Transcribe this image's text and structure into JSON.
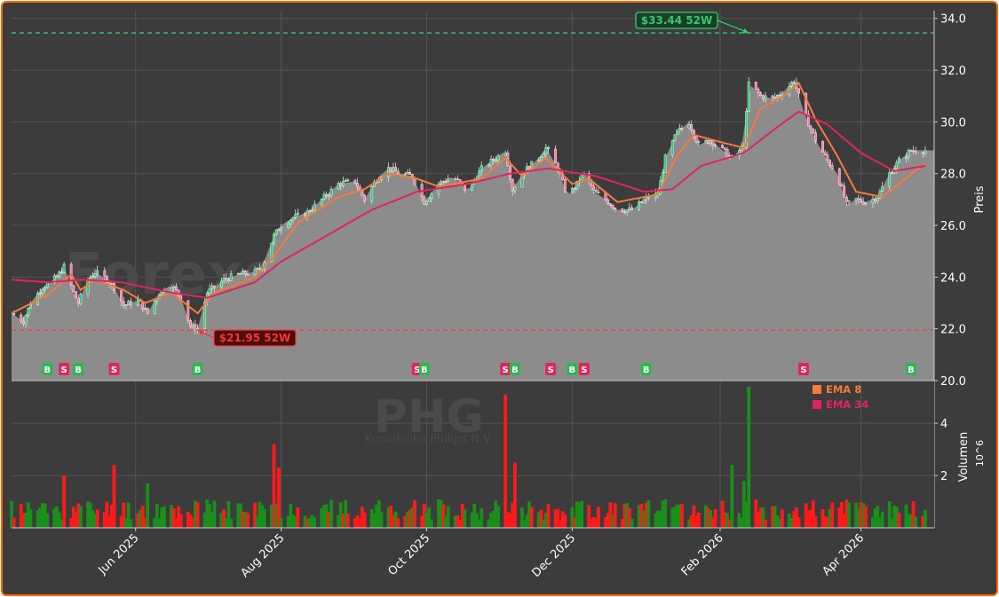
{
  "chart_data": [
    {
      "type": "candlestick",
      "panel": "price",
      "watermark": "Forexsignale.trade",
      "ylabel": "Preis",
      "ylim": [
        20.0,
        34.3
      ],
      "yticks": [
        20.0,
        22.0,
        24.0,
        26.0,
        28.0,
        30.0,
        32.0,
        34.0
      ],
      "ytick_labels": [
        "20.0",
        "22.0",
        "24.0",
        "26.0",
        "28.0",
        "30.0",
        "32.0",
        "34.0"
      ],
      "xlim": [
        "2025-04-10",
        "2026-04-28"
      ],
      "xticks": [
        "2025-06-01",
        "2025-08-01",
        "2025-10-01",
        "2025-12-01",
        "2026-02-01",
        "2026-04-01"
      ],
      "xtick_labels": [
        "Jun 2025",
        "Aug 2025",
        "Oct 2025",
        "Dec 2025",
        "Feb 2026",
        "Apr 2026"
      ],
      "grid": true,
      "close_points": [
        [
          "2025-04-10",
          22.6
        ],
        [
          "2025-04-15",
          22.3
        ],
        [
          "2025-04-18",
          23.0
        ],
        [
          "2025-04-23",
          23.6
        ],
        [
          "2025-04-29",
          24.0
        ],
        [
          "2025-05-02",
          24.4
        ],
        [
          "2025-05-06",
          23.4
        ],
        [
          "2025-05-08",
          23.0
        ],
        [
          "2025-05-12",
          23.9
        ],
        [
          "2025-05-15",
          24.2
        ],
        [
          "2025-05-20",
          23.9
        ],
        [
          "2025-05-23",
          23.6
        ],
        [
          "2025-05-27",
          22.9
        ],
        [
          "2025-06-02",
          23.1
        ],
        [
          "2025-06-06",
          22.6
        ],
        [
          "2025-06-11",
          23.4
        ],
        [
          "2025-06-16",
          23.7
        ],
        [
          "2025-06-20",
          23.2
        ],
        [
          "2025-06-24",
          22.1
        ],
        [
          "2025-06-27",
          22.0
        ],
        [
          "2025-07-01",
          23.4
        ],
        [
          "2025-07-08",
          23.9
        ],
        [
          "2025-07-14",
          24.1
        ],
        [
          "2025-07-21",
          24.2
        ],
        [
          "2025-07-24",
          24.4
        ],
        [
          "2025-07-29",
          25.6
        ],
        [
          "2025-08-01",
          26.0
        ],
        [
          "2025-08-06",
          26.3
        ],
        [
          "2025-08-12",
          26.5
        ],
        [
          "2025-08-18",
          27.0
        ],
        [
          "2025-08-25",
          27.6
        ],
        [
          "2025-09-01",
          27.7
        ],
        [
          "2025-09-05",
          27.0
        ],
        [
          "2025-09-10",
          27.8
        ],
        [
          "2025-09-15",
          28.2
        ],
        [
          "2025-09-20",
          28.0
        ],
        [
          "2025-09-25",
          27.9
        ],
        [
          "2025-09-30",
          26.9
        ],
        [
          "2025-10-06",
          27.6
        ],
        [
          "2025-10-12",
          27.9
        ],
        [
          "2025-10-18",
          27.3
        ],
        [
          "2025-10-24",
          28.2
        ],
        [
          "2025-10-30",
          28.6
        ],
        [
          "2025-11-03",
          28.9
        ],
        [
          "2025-11-06",
          27.4
        ],
        [
          "2025-11-11",
          28.1
        ],
        [
          "2025-11-17",
          28.6
        ],
        [
          "2025-11-20",
          29.0
        ],
        [
          "2025-11-25",
          28.2
        ],
        [
          "2025-11-29",
          27.1
        ],
        [
          "2025-12-03",
          27.6
        ],
        [
          "2025-12-06",
          28.1
        ],
        [
          "2025-12-10",
          27.3
        ],
        [
          "2025-12-15",
          27.0
        ],
        [
          "2025-12-20",
          26.6
        ],
        [
          "2025-12-26",
          26.6
        ],
        [
          "2026-01-02",
          27.1
        ],
        [
          "2026-01-06",
          27.2
        ],
        [
          "2026-01-09",
          28.6
        ],
        [
          "2026-01-14",
          29.6
        ],
        [
          "2026-01-19",
          30.0
        ],
        [
          "2026-01-23",
          29.1
        ],
        [
          "2026-01-28",
          29.3
        ],
        [
          "2026-02-02",
          28.9
        ],
        [
          "2026-02-06",
          28.6
        ],
        [
          "2026-02-11",
          29.1
        ],
        [
          "2026-02-13",
          31.5
        ],
        [
          "2026-02-18",
          31.0
        ],
        [
          "2026-02-23",
          30.9
        ],
        [
          "2026-02-28",
          31.2
        ],
        [
          "2026-03-04",
          31.6
        ],
        [
          "2026-03-08",
          30.4
        ],
        [
          "2026-03-13",
          29.3
        ],
        [
          "2026-03-18",
          28.5
        ],
        [
          "2026-03-22",
          28.0
        ],
        [
          "2026-03-26",
          26.8
        ],
        [
          "2026-03-30",
          27.0
        ],
        [
          "2026-04-03",
          26.9
        ],
        [
          "2026-04-08",
          27.1
        ],
        [
          "2026-04-13",
          28.0
        ],
        [
          "2026-04-17",
          28.5
        ],
        [
          "2026-04-22",
          28.9
        ],
        [
          "2026-04-28",
          28.9
        ]
      ],
      "indicators": [
        {
          "name": "EMA 8",
          "color": "#f47b3c",
          "points": [
            [
              "2025-04-10",
              22.6
            ],
            [
              "2025-04-25",
              23.3
            ],
            [
              "2025-05-05",
              24.1
            ],
            [
              "2025-05-09",
              23.5
            ],
            [
              "2025-05-15",
              23.9
            ],
            [
              "2025-05-27",
              23.5
            ],
            [
              "2025-06-05",
              23.0
            ],
            [
              "2025-06-16",
              23.4
            ],
            [
              "2025-06-27",
              22.6
            ],
            [
              "2025-07-04",
              23.4
            ],
            [
              "2025-07-21",
              24.0
            ],
            [
              "2025-07-29",
              24.8
            ],
            [
              "2025-08-08",
              26.1
            ],
            [
              "2025-08-25",
              27.1
            ],
            [
              "2025-09-05",
              27.4
            ],
            [
              "2025-09-15",
              28.0
            ],
            [
              "2025-09-27",
              27.8
            ],
            [
              "2025-10-06",
              27.5
            ],
            [
              "2025-10-24",
              27.8
            ],
            [
              "2025-11-03",
              28.6
            ],
            [
              "2025-11-10",
              27.9
            ],
            [
              "2025-11-20",
              28.6
            ],
            [
              "2025-12-01",
              27.6
            ],
            [
              "2025-12-08",
              27.8
            ],
            [
              "2025-12-20",
              26.9
            ],
            [
              "2026-01-06",
              27.2
            ],
            [
              "2026-01-14",
              28.7
            ],
            [
              "2026-01-21",
              29.5
            ],
            [
              "2026-02-02",
              29.2
            ],
            [
              "2026-02-11",
              29.0
            ],
            [
              "2026-02-18",
              30.5
            ],
            [
              "2026-03-01",
              31.1
            ],
            [
              "2026-03-06",
              31.5
            ],
            [
              "2026-03-13",
              30.1
            ],
            [
              "2026-03-22",
              28.7
            ],
            [
              "2026-03-30",
              27.3
            ],
            [
              "2026-04-10",
              27.1
            ],
            [
              "2026-04-28",
              28.4
            ]
          ]
        },
        {
          "name": "EMA 34",
          "color": "#e0245e",
          "points": [
            [
              "2025-04-10",
              23.9
            ],
            [
              "2025-04-25",
              23.8
            ],
            [
              "2025-05-10",
              23.9
            ],
            [
              "2025-05-26",
              23.8
            ],
            [
              "2025-06-16",
              23.4
            ],
            [
              "2025-07-01",
              23.2
            ],
            [
              "2025-07-21",
              23.8
            ],
            [
              "2025-08-01",
              24.6
            ],
            [
              "2025-08-20",
              25.6
            ],
            [
              "2025-09-08",
              26.6
            ],
            [
              "2025-09-27",
              27.3
            ],
            [
              "2025-10-18",
              27.6
            ],
            [
              "2025-11-05",
              28.0
            ],
            [
              "2025-11-21",
              28.2
            ],
            [
              "2025-12-11",
              27.9
            ],
            [
              "2025-12-31",
              27.3
            ],
            [
              "2026-01-12",
              27.4
            ],
            [
              "2026-01-24",
              28.3
            ],
            [
              "2026-02-11",
              28.8
            ],
            [
              "2026-02-25",
              29.8
            ],
            [
              "2026-03-06",
              30.4
            ],
            [
              "2026-03-18",
              29.9
            ],
            [
              "2026-04-01",
              28.8
            ],
            [
              "2026-04-15",
              28.1
            ],
            [
              "2026-04-28",
              28.3
            ]
          ]
        }
      ],
      "reference_lines": [
        {
          "label": "$33.44 52W",
          "value": 33.44,
          "date": "2026-02-13",
          "color": "#2ecc71"
        },
        {
          "label": "$21.95 52W",
          "value": 21.95,
          "date": "2025-06-27",
          "color": "#ff3333"
        }
      ],
      "signals": [
        {
          "label": "B",
          "date": "2025-04-25",
          "color": "#2db84d"
        },
        {
          "label": "S",
          "date": "2025-05-02",
          "color": "#e0245e"
        },
        {
          "label": "B",
          "date": "2025-05-08",
          "color": "#2db84d"
        },
        {
          "label": "S",
          "date": "2025-05-23",
          "color": "#e0245e"
        },
        {
          "label": "B",
          "date": "2025-06-27",
          "color": "#2db84d"
        },
        {
          "label": "S",
          "date": "2025-09-27",
          "color": "#e0245e"
        },
        {
          "label": "B",
          "date": "2025-09-30",
          "color": "#2db84d"
        },
        {
          "label": "S",
          "date": "2025-11-03",
          "color": "#e0245e"
        },
        {
          "label": "B",
          "date": "2025-11-07",
          "color": "#2db84d"
        },
        {
          "label": "S",
          "date": "2025-11-22",
          "color": "#e0245e"
        },
        {
          "label": "B",
          "date": "2025-12-01",
          "color": "#2db84d"
        },
        {
          "label": "S",
          "date": "2025-12-06",
          "color": "#e0245e"
        },
        {
          "label": "B",
          "date": "2026-01-01",
          "color": "#2db84d"
        },
        {
          "label": "S",
          "date": "2026-03-08",
          "color": "#e0245e"
        },
        {
          "label": "B",
          "date": "2026-04-22",
          "color": "#2db84d"
        }
      ]
    },
    {
      "type": "bar",
      "panel": "volume",
      "ticker": "PHG",
      "company": "Koninklijke Philips N.V.",
      "ylabel": "Volumen",
      "yscale_label": "10^6",
      "ylim": [
        0,
        5.6
      ],
      "yticks": [
        2,
        4
      ],
      "ytick_labels": [
        "2",
        "4"
      ],
      "legend": [
        {
          "name": "EMA 8",
          "color": "#f47b3c"
        },
        {
          "name": "EMA 34",
          "color": "#e0245e"
        }
      ],
      "legend_placement": "top-right",
      "up_color": "#1a8f1a",
      "down_color": "#ff1a1a",
      "spikes": [
        {
          "date": "2025-05-02",
          "value": 2.0,
          "dir": "down"
        },
        {
          "date": "2025-05-23",
          "value": 2.4,
          "dir": "down"
        },
        {
          "date": "2025-06-06",
          "value": 1.7,
          "dir": "up"
        },
        {
          "date": "2025-07-29",
          "value": 3.2,
          "dir": "down"
        },
        {
          "date": "2025-07-31",
          "value": 2.3,
          "dir": "down"
        },
        {
          "date": "2025-11-03",
          "value": 5.1,
          "dir": "down"
        },
        {
          "date": "2025-11-07",
          "value": 2.5,
          "dir": "down"
        },
        {
          "date": "2026-02-06",
          "value": 2.4,
          "dir": "up"
        },
        {
          "date": "2026-02-13",
          "value": 5.4,
          "dir": "up"
        },
        {
          "date": "2026-02-11",
          "value": 1.8,
          "dir": "up"
        }
      ],
      "typical_range": [
        0.3,
        1.1
      ]
    }
  ]
}
